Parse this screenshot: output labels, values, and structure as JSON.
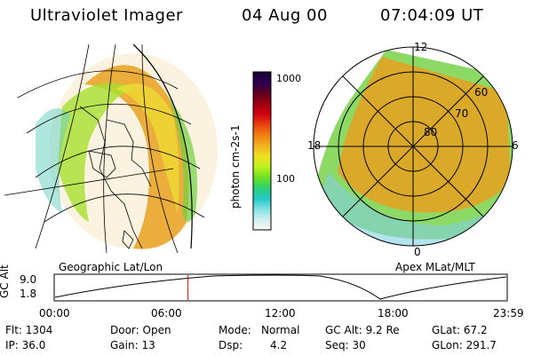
{
  "header": {
    "title": "Ultraviolet Imager",
    "date": "04 Aug 00",
    "time": "07:04:09 UT"
  },
  "colorbar": {
    "label": "photon cm-2s-1",
    "ticks": [
      "1000",
      "100"
    ],
    "colors": [
      "#1a0030",
      "#2a0050",
      "#5a0020",
      "#9a0010",
      "#d00010",
      "#e84010",
      "#f08010",
      "#f0b020",
      "#f0e020",
      "#c0f020",
      "#70e020",
      "#30d070",
      "#20c8c8",
      "#80e0e0",
      "#d0f0f0",
      "#f8f8f8"
    ]
  },
  "left_map": {
    "caption": "Geographic Lat/Lon"
  },
  "right_map": {
    "caption": "Apex MLat/MLT",
    "ring_labels": [
      "60",
      "70",
      "80"
    ],
    "mlt_labels": {
      "top": "12",
      "left": "18",
      "right": "6",
      "bottom": "0"
    }
  },
  "alt_plot": {
    "ylabel": "GC Alt",
    "yticks": [
      "9.0",
      "1.8"
    ],
    "xticks": [
      "00:00",
      "06:00",
      "12:00",
      "18:00",
      "23:59"
    ],
    "current_time_hours": 7.07
  },
  "footer": {
    "flt": "Flt: 1304",
    "ip": "IP: 36.0",
    "door": "Door: Open",
    "gain": "Gain: 13",
    "mode_label": "Mode:",
    "mode_value": "Normal",
    "dsp_label": "Dsp:",
    "dsp_value": "4.2",
    "gcalt": "GC Alt: 9.2 Re",
    "seq": "Seq: 30",
    "glat": "GLat: 67.2",
    "glon": "GLon: 291.7"
  }
}
